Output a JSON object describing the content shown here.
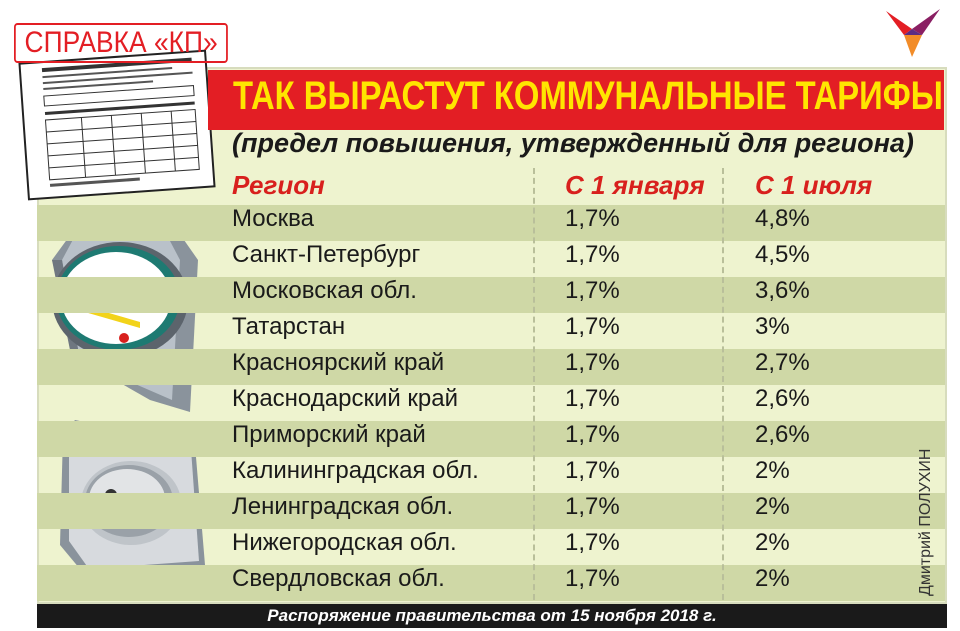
{
  "brand": {
    "label": "СПРАВКА «КП»"
  },
  "header": {
    "title": "ТАК ВЫРАСТУТ КОММУНАЛЬНЫЕ ТАРИФЫ",
    "subtitle": "(предел повышения, утвержденный для региона)"
  },
  "table": {
    "columns": [
      "Регион",
      "С 1 января",
      "С 1 июля"
    ],
    "rows": [
      {
        "region": "Москва",
        "jan": "1,7%",
        "jul": "4,8%"
      },
      {
        "region": "Санкт-Петербург",
        "jan": "1,7%",
        "jul": "4,5%"
      },
      {
        "region": "Московская обл.",
        "jan": "1,7%",
        "jul": "3,6%"
      },
      {
        "region": "Татарстан",
        "jan": "1,7%",
        "jul": "3%"
      },
      {
        "region": "Красноярский край",
        "jan": "1,7%",
        "jul": "2,7%"
      },
      {
        "region": "Краснодарский край",
        "jan": "1,7%",
        "jul": "2,6%"
      },
      {
        "region": "Приморский край",
        "jan": "1,7%",
        "jul": "2,6%"
      },
      {
        "region": "Калининградская обл.",
        "jan": "1,7%",
        "jul": "2%"
      },
      {
        "region": "Ленинградская обл.",
        "jan": "1,7%",
        "jul": "2%"
      },
      {
        "region": "Нижегородская обл.",
        "jan": "1,7%",
        "jul": "2%"
      },
      {
        "region": "Свердловская обл.",
        "jan": "1,7%",
        "jul": "2%"
      }
    ]
  },
  "author": "Дмитрий ПОЛУХИН",
  "footer": {
    "source": "Распоряжение правительства от 15 ноября 2018 г."
  },
  "icons": [
    "utility-bill-icon",
    "kp-bird-logo-icon",
    "electric-meter-icon",
    "power-socket-icon"
  ],
  "colors": {
    "accent_red": "#e31e24",
    "title_yellow": "#ffe500",
    "panel": "#eef3cf",
    "row_alt": "#cfd8a6"
  }
}
